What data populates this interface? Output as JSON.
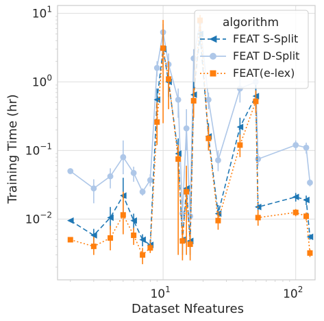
{
  "chart_data": {
    "type": "line",
    "xlabel": "Dataset Nfeatures",
    "ylabel": "Training Time (hr)",
    "xscale": "log",
    "yscale": "log",
    "xlim": [
      1.6,
      140
    ],
    "ylim": [
      0.0013,
      13
    ],
    "grid": true,
    "legend": {
      "title": "algorithm",
      "placement": "top-right"
    },
    "x_ticks": [
      {
        "value": 10,
        "base": "10",
        "exp": "1"
      },
      {
        "value": 100,
        "base": "10",
        "exp": "2"
      }
    ],
    "y_ticks": [
      {
        "value": 10,
        "base": "10",
        "exp": "1"
      },
      {
        "value": 1,
        "base": "10",
        "exp": "0"
      },
      {
        "value": 0.1,
        "base": "10",
        "exp": "−1"
      },
      {
        "value": 0.01,
        "base": "10",
        "exp": "−2"
      }
    ],
    "series": [
      {
        "name": "FEAT D-Split",
        "color": "#aec7e8",
        "marker": "circle",
        "linestyle": "solid",
        "points": [
          {
            "x": 2,
            "y": 0.05,
            "lo": 0.05,
            "hi": 0.05
          },
          {
            "x": 3,
            "y": 0.028,
            "lo": 0.017,
            "hi": 0.038
          },
          {
            "x": 4,
            "y": 0.042,
            "lo": 0.028,
            "hi": 0.055
          },
          {
            "x": 5,
            "y": 0.08,
            "lo": 0.045,
            "hi": 0.14
          },
          {
            "x": 6,
            "y": 0.047,
            "lo": 0.035,
            "hi": 0.058
          },
          {
            "x": 7,
            "y": 0.025,
            "lo": 0.022,
            "hi": 0.028
          },
          {
            "x": 8,
            "y": 0.037,
            "lo": 0.03,
            "hi": 0.045
          },
          {
            "x": 9,
            "y": 1.6,
            "lo": 1.2,
            "hi": 2.0
          },
          {
            "x": 10,
            "y": 5.3,
            "lo": 3.5,
            "hi": 7.0
          },
          {
            "x": 11,
            "y": 1.8,
            "lo": 1.0,
            "hi": 2.6
          },
          {
            "x": 13,
            "y": 0.55,
            "lo": 0.3,
            "hi": 0.8
          },
          {
            "x": 14,
            "y": 0.012,
            "lo": 0.008,
            "hi": 0.016
          },
          {
            "x": 15,
            "y": 0.21,
            "lo": 0.1,
            "hi": 0.4
          },
          {
            "x": 16,
            "y": 0.011,
            "lo": 0.007,
            "hi": 0.015
          },
          {
            "x": 17,
            "y": 2.2,
            "lo": 1.5,
            "hi": 3.0
          },
          {
            "x": 19,
            "y": 7.5,
            "lo": 6.0,
            "hi": 8.5
          },
          {
            "x": 22,
            "y": 0.55,
            "lo": 0.4,
            "hi": 0.7
          },
          {
            "x": 26,
            "y": 0.072,
            "lo": 0.05,
            "hi": 0.1
          },
          {
            "x": 38,
            "y": 0.8,
            "lo": 0.5,
            "hi": 1.2
          },
          {
            "x": 50,
            "y": 1.0,
            "lo": 0.6,
            "hi": 1.4
          },
          {
            "x": 52,
            "y": 0.075,
            "lo": 0.06,
            "hi": 0.09
          },
          {
            "x": 100,
            "y": 0.12,
            "lo": 0.1,
            "hi": 0.14
          },
          {
            "x": 120,
            "y": 0.11,
            "lo": 0.09,
            "hi": 0.13
          },
          {
            "x": 128,
            "y": 0.034,
            "lo": 0.03,
            "hi": 0.038
          }
        ]
      },
      {
        "name": "FEAT S-Split",
        "color": "#1f77b4",
        "marker": "triangle-left",
        "linestyle": "dashed",
        "points": [
          {
            "x": 2,
            "y": 0.0095,
            "lo": 0.0095,
            "hi": 0.0095
          },
          {
            "x": 3,
            "y": 0.0058,
            "lo": 0.0045,
            "hi": 0.0072
          },
          {
            "x": 4,
            "y": 0.0105,
            "lo": 0.007,
            "hi": 0.015
          },
          {
            "x": 5,
            "y": 0.022,
            "lo": 0.012,
            "hi": 0.04
          },
          {
            "x": 6,
            "y": 0.0095,
            "lo": 0.007,
            "hi": 0.012
          },
          {
            "x": 7,
            "y": 0.005,
            "lo": 0.004,
            "hi": 0.006
          },
          {
            "x": 8,
            "y": 0.0042,
            "lo": 0.0035,
            "hi": 0.005
          },
          {
            "x": 9,
            "y": 0.55,
            "lo": 0.3,
            "hi": 0.8
          },
          {
            "x": 10,
            "y": 3.0,
            "lo": 1.5,
            "hi": 5.0
          },
          {
            "x": 11,
            "y": 1.0,
            "lo": 0.6,
            "hi": 1.5
          },
          {
            "x": 13,
            "y": 0.09,
            "lo": 0.05,
            "hi": 0.15
          },
          {
            "x": 14,
            "y": 0.005,
            "lo": 0.003,
            "hi": 0.007
          },
          {
            "x": 15,
            "y": 0.028,
            "lo": 0.015,
            "hi": 0.05
          },
          {
            "x": 16,
            "y": 0.0048,
            "lo": 0.003,
            "hi": 0.007
          },
          {
            "x": 17,
            "y": 0.65,
            "lo": 0.4,
            "hi": 1.0
          },
          {
            "x": 19,
            "y": 5.0,
            "lo": 3.5,
            "hi": 6.5
          },
          {
            "x": 22,
            "y": 0.16,
            "lo": 0.1,
            "hi": 0.25
          },
          {
            "x": 26,
            "y": 0.012,
            "lo": 0.009,
            "hi": 0.016
          },
          {
            "x": 38,
            "y": 0.22,
            "lo": 0.15,
            "hi": 0.3
          },
          {
            "x": 50,
            "y": 0.62,
            "lo": 0.4,
            "hi": 0.9
          },
          {
            "x": 52,
            "y": 0.015,
            "lo": 0.012,
            "hi": 0.018
          },
          {
            "x": 100,
            "y": 0.021,
            "lo": 0.018,
            "hi": 0.024
          },
          {
            "x": 120,
            "y": 0.019,
            "lo": 0.016,
            "hi": 0.022
          },
          {
            "x": 128,
            "y": 0.0055,
            "lo": 0.005,
            "hi": 0.006
          }
        ]
      },
      {
        "name": "FEAT(e-lex)",
        "color": "#ff7f0e",
        "marker": "square",
        "linestyle": "dotted",
        "points": [
          {
            "x": 2,
            "y": 0.005,
            "lo": 0.005,
            "hi": 0.005
          },
          {
            "x": 3,
            "y": 0.004,
            "lo": 0.003,
            "hi": 0.0055
          },
          {
            "x": 4,
            "y": 0.0053,
            "lo": 0.0035,
            "hi": 0.008
          },
          {
            "x": 5,
            "y": 0.0115,
            "lo": 0.006,
            "hi": 0.025
          },
          {
            "x": 6,
            "y": 0.0058,
            "lo": 0.0042,
            "hi": 0.0075
          },
          {
            "x": 7,
            "y": 0.003,
            "lo": 0.0022,
            "hi": 0.0038
          },
          {
            "x": 8,
            "y": 0.0038,
            "lo": 0.0032,
            "hi": 0.0045
          },
          {
            "x": 9,
            "y": 0.26,
            "lo": 0.12,
            "hi": 0.5
          },
          {
            "x": 10,
            "y": 3.1,
            "lo": 0.25,
            "hi": 8.0
          },
          {
            "x": 11,
            "y": 1.1,
            "lo": 0.4,
            "hi": 2.0
          },
          {
            "x": 13,
            "y": 0.075,
            "lo": 0.003,
            "hi": 0.12
          },
          {
            "x": 14,
            "y": 0.0048,
            "lo": 0.0025,
            "hi": 0.008
          },
          {
            "x": 15,
            "y": 0.025,
            "lo": 0.003,
            "hi": 0.06
          },
          {
            "x": 16,
            "y": 0.0043,
            "lo": 0.0025,
            "hi": 0.006
          },
          {
            "x": 17,
            "y": 0.53,
            "lo": 0.3,
            "hi": 0.8
          },
          {
            "x": 19,
            "y": 7.9,
            "lo": 5.5,
            "hi": 9.5
          },
          {
            "x": 22,
            "y": 0.15,
            "lo": 0.1,
            "hi": 0.22
          },
          {
            "x": 26,
            "y": 0.0095,
            "lo": 0.007,
            "hi": 0.013
          },
          {
            "x": 38,
            "y": 0.12,
            "lo": 0.08,
            "hi": 0.17
          },
          {
            "x": 50,
            "y": 0.52,
            "lo": 0.35,
            "hi": 0.75
          },
          {
            "x": 52,
            "y": 0.0105,
            "lo": 0.008,
            "hi": 0.013
          },
          {
            "x": 100,
            "y": 0.0125,
            "lo": 0.011,
            "hi": 0.014
          },
          {
            "x": 120,
            "y": 0.011,
            "lo": 0.0095,
            "hi": 0.0125
          },
          {
            "x": 128,
            "y": 0.0032,
            "lo": 0.0028,
            "hi": 0.0036
          }
        ]
      }
    ],
    "legend_order": [
      "FEAT S-Split",
      "FEAT D-Split",
      "FEAT(e-lex)"
    ]
  }
}
